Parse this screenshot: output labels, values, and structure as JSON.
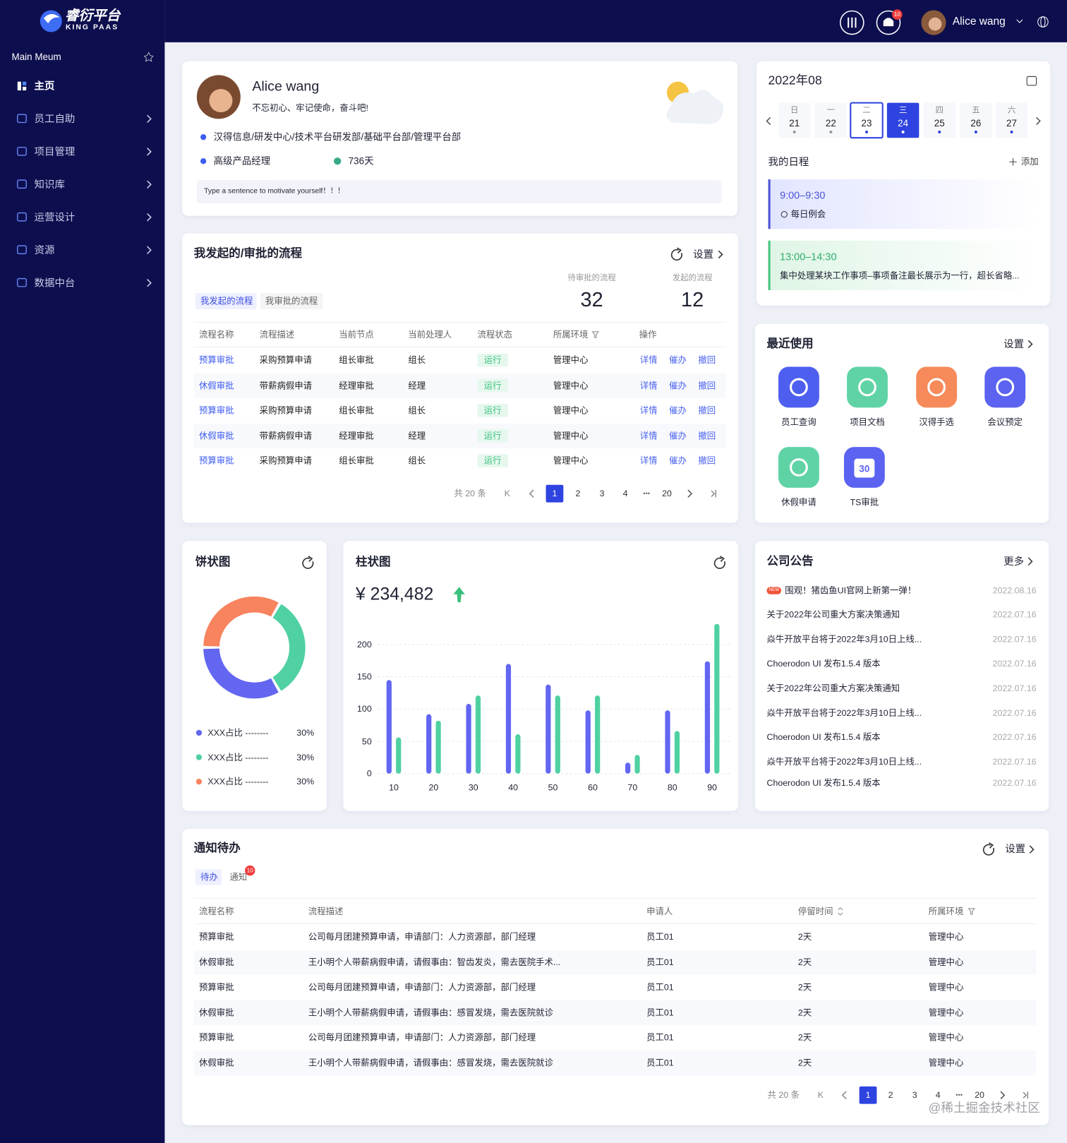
{
  "brand": {
    "name": "睿衍平台",
    "sub": "KING PAAS"
  },
  "sidebar": {
    "title": "Main Meum",
    "items": [
      "主页",
      "员工自助",
      "项目管理",
      "知识库",
      "运营设计",
      "资源",
      "数据中台"
    ]
  },
  "topbar": {
    "badge": "10",
    "user": "Alice wang"
  },
  "profile": {
    "name": "Alice wang",
    "motto": "不忘初心、牢记使命，奋斗吧!",
    "dept": "汉得信息/研发中心/技术平台研发部/基础平台部/管理平台部",
    "role": "高级产品经理",
    "days": "736天",
    "placeholder": "Type a sentence to motivate yourself！！！"
  },
  "calendar": {
    "month": "2022年08",
    "week": [
      {
        "weekday": "日",
        "date": "21"
      },
      {
        "weekday": "一",
        "date": "22"
      },
      {
        "weekday": "二",
        "date": "23"
      },
      {
        "weekday": "三",
        "date": "24"
      },
      {
        "weekday": "四",
        "date": "25"
      },
      {
        "weekday": "五",
        "date": "26"
      },
      {
        "weekday": "六",
        "date": "27"
      }
    ],
    "schedule_title": "我的日程",
    "add": "添加",
    "events": [
      {
        "time": "9:00–9:30",
        "desc": "每日例会"
      },
      {
        "time": "13:00–14:30",
        "desc": "集中处理某块工作事项–事项备注最长展示为一行，超长省略..."
      }
    ]
  },
  "process": {
    "title": "我发起的/审批的流程",
    "settings": "设置",
    "tabs": [
      "我发起的流程",
      "我审批的流程"
    ],
    "stats": [
      {
        "label": "待审批的流程",
        "value": "32"
      },
      {
        "label": "发起的流程",
        "value": "12"
      }
    ],
    "columns": [
      "流程名称",
      "流程描述",
      "当前节点",
      "当前处理人",
      "流程状态",
      "所属环境",
      "操作"
    ],
    "rows": [
      [
        "预算审批",
        "采购预算申请",
        "组长审批",
        "组长",
        "运行",
        "管理中心"
      ],
      [
        "休假审批",
        "带薪病假申请",
        "经理审批",
        "经理",
        "运行",
        "管理中心"
      ],
      [
        "预算审批",
        "采购预算申请",
        "组长审批",
        "组长",
        "运行",
        "管理中心"
      ],
      [
        "休假审批",
        "带薪病假申请",
        "经理审批",
        "经理",
        "运行",
        "管理中心"
      ],
      [
        "预算审批",
        "采购预算申请",
        "组长审批",
        "组长",
        "运行",
        "管理中心"
      ]
    ],
    "actions": [
      "详情",
      "催办",
      "撤回"
    ],
    "pagination": {
      "total": "共 20 条",
      "first": "K",
      "pages": [
        "1",
        "2",
        "3",
        "4",
        "20"
      ],
      "ellipsis": "•••"
    }
  },
  "recent": {
    "title": "最近使用",
    "settings": "设置",
    "apps": [
      "员工查询",
      "项目文档",
      "汉得手选",
      "会议预定",
      "休假申请",
      "TS审批"
    ],
    "ts_icon": "30"
  },
  "chart_data": [
    {
      "type": "pie",
      "title": "饼状图",
      "categories": [
        "XXX占比 --------",
        "XXX占比 --------",
        "XXX占比 --------"
      ],
      "values": [
        30,
        30,
        30
      ],
      "value_labels": [
        "30%",
        "30%",
        "30%"
      ],
      "colors": [
        "#6366f1",
        "#4fd1a1",
        "#f7845e"
      ]
    },
    {
      "type": "bar",
      "title": "柱状图",
      "total": "¥ 234,482",
      "categories": [
        "10",
        "20",
        "30",
        "40",
        "50",
        "60",
        "70",
        "80",
        "90"
      ],
      "series": [
        {
          "color": "#6366f1",
          "values": [
            145,
            92,
            108,
            170,
            138,
            98,
            17,
            98,
            174
          ]
        },
        {
          "color": "#4fd1a1",
          "values": [
            56,
            82,
            121,
            61,
            121,
            121,
            29,
            66,
            232
          ]
        }
      ],
      "ylim": [
        0,
        235
      ],
      "yticks": [
        0,
        50,
        100,
        150,
        200
      ],
      "grid": true
    }
  ],
  "notices": {
    "title": "公司公告",
    "more": "更多",
    "new": "NEW",
    "items": [
      {
        "text": "围观！猪齿鱼UI官网上新第一弹！",
        "date": "2022.08.16"
      },
      {
        "text": "关于2022年公司重大方案决策通知",
        "date": "2022.07.16"
      },
      {
        "text": "焱牛开放平台将于2022年3月10日上线...",
        "date": "2022.07.16"
      },
      {
        "text": "Choerodon UI 发布1.5.4 版本",
        "date": "2022.07.16"
      },
      {
        "text": "关于2022年公司重大方案决策通知",
        "date": "2022.07.16"
      },
      {
        "text": "焱牛开放平台将于2022年3月10日上线...",
        "date": "2022.07.16"
      },
      {
        "text": "Choerodon UI 发布1.5.4 版本",
        "date": "2022.07.16"
      },
      {
        "text": "焱牛开放平台将于2022年3月10日上线...",
        "date": "2022.07.16"
      },
      {
        "text": "Choerodon UI 发布1.5.4 版本",
        "date": "2022.07.16"
      }
    ]
  },
  "todo": {
    "title": "通知待办",
    "settings": "设置",
    "tabs": [
      "待办",
      "通知"
    ],
    "badge": "10",
    "columns": [
      "流程名称",
      "流程描述",
      "申请人",
      "停留时间",
      "所属环境"
    ],
    "rows": [
      [
        "预算审批",
        "公司每月团建预算申请，申请部门：人力资源部，部门经理",
        "员工01",
        "2天",
        "管理中心"
      ],
      [
        "休假审批",
        "王小明个人带薪病假申请，请假事由：智齿发炎，需去医院手术...",
        "员工01",
        "2天",
        "管理中心"
      ],
      [
        "预算审批",
        "公司每月团建预算申请，申请部门：人力资源部，部门经理",
        "员工01",
        "2天",
        "管理中心"
      ],
      [
        "休假审批",
        "王小明个人带薪病假申请，请假事由：感冒发烧，需去医院就诊",
        "员工01",
        "2天",
        "管理中心"
      ],
      [
        "预算审批",
        "公司每月团建预算申请，申请部门：人力资源部，部门经理",
        "员工01",
        "2天",
        "管理中心"
      ],
      [
        "休假审批",
        "王小明个人带薪病假申请，请假事由：感冒发烧，需去医院就诊",
        "员工01",
        "2天",
        "管理中心"
      ]
    ],
    "pagination": {
      "total": "共 20 条",
      "first": "K",
      "pages": [
        "1",
        "2",
        "3",
        "4",
        "20"
      ],
      "ellipsis": "•••"
    }
  },
  "watermark": "@稀土掘金技术社区"
}
